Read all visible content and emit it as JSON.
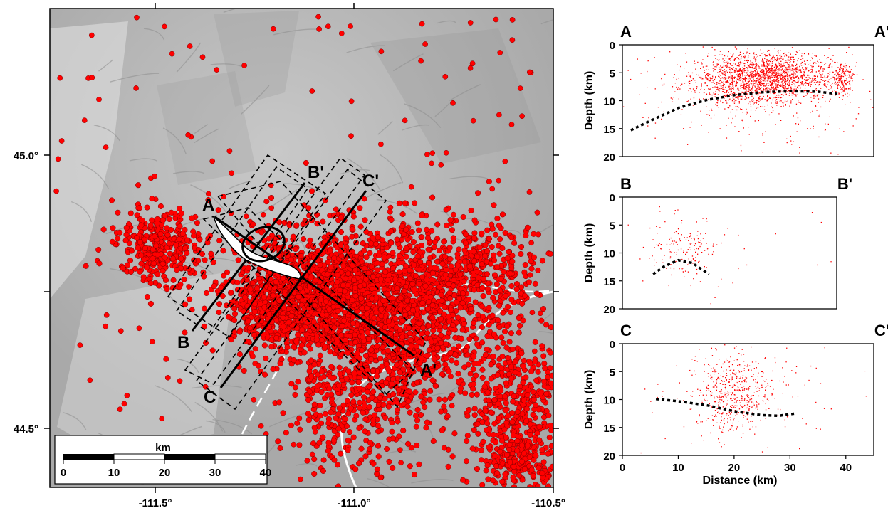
{
  "map": {
    "lon_ticks": [
      "-111.5°",
      "-111.0°",
      "-110.5°"
    ],
    "lat_ticks": [
      "45.0°",
      "44.5°"
    ],
    "profile_labels": {
      "A": "A",
      "A_prime": "A'",
      "B": "B",
      "B_prime": "B'",
      "C": "C",
      "C_prime": "C'"
    },
    "scalebar": {
      "title": "km",
      "ticks": [
        "0",
        "10",
        "20",
        "30",
        "40"
      ]
    },
    "colors": {
      "event": "#ff0000",
      "event_edge": "#7a0000",
      "background": "#b9b9b9",
      "road": "#ffffff"
    }
  },
  "chart_data": [
    {
      "type": "scatter",
      "corner_labels": [
        "A",
        "A'"
      ],
      "xlabel": "",
      "ylabel": "Depth (km)",
      "xlim": [
        0,
        45
      ],
      "ylim": [
        20,
        0
      ],
      "y_ticks": [
        "0",
        "5",
        "10",
        "15",
        "20"
      ],
      "x_ticks": [],
      "dashed_curve": [
        [
          1.5,
          15.3
        ],
        [
          5,
          13.6
        ],
        [
          10,
          11.3
        ],
        [
          15,
          9.9
        ],
        [
          20,
          9.0
        ],
        [
          25,
          8.5
        ],
        [
          30,
          8.3
        ],
        [
          35,
          8.4
        ],
        [
          38.5,
          8.8
        ]
      ],
      "clusters": [
        {
          "cx": 27,
          "cy": 5.5,
          "sx": 5.5,
          "sy": 2.0,
          "n": 1400
        },
        {
          "cx": 21,
          "cy": 7.0,
          "sx": 5.0,
          "sy": 2.4,
          "n": 600
        },
        {
          "cx": 39.5,
          "cy": 6.3,
          "sx": 0.9,
          "sy": 1.4,
          "n": 180
        },
        {
          "cx": 24,
          "cy": 8.0,
          "sx": 11,
          "sy": 5.5,
          "n": 300
        }
      ]
    },
    {
      "type": "scatter",
      "corner_labels": [
        "B",
        "B'"
      ],
      "xlabel": "",
      "ylabel": "Depth (km)",
      "xlim": [
        0,
        45
      ],
      "ylim": [
        20,
        0
      ],
      "y_ticks": [
        "0",
        "5",
        "10",
        "15",
        "20"
      ],
      "x_ticks": [],
      "dashed_curve": [
        [
          5.5,
          13.8
        ],
        [
          7.5,
          12.4
        ],
        [
          10,
          11.3
        ],
        [
          12.5,
          11.8
        ],
        [
          15.5,
          13.8
        ]
      ],
      "clusters": [
        {
          "cx": 11,
          "cy": 9.5,
          "sx": 3.0,
          "sy": 3.0,
          "n": 150
        },
        {
          "cx": 20,
          "cy": 10.0,
          "sx": 12,
          "sy": 6.0,
          "n": 30
        }
      ]
    },
    {
      "type": "scatter",
      "corner_labels": [
        "C",
        "C'"
      ],
      "xlabel": "Distance (km)",
      "ylabel": "Depth (km)",
      "xlim": [
        0,
        45
      ],
      "ylim": [
        20,
        0
      ],
      "y_ticks": [
        "0",
        "5",
        "10",
        "15",
        "20"
      ],
      "x_ticks": [
        "0",
        "10",
        "20",
        "30",
        "40"
      ],
      "dashed_curve": [
        [
          6,
          9.9
        ],
        [
          10,
          10.3
        ],
        [
          15,
          11.0
        ],
        [
          20,
          12.1
        ],
        [
          25,
          12.8
        ],
        [
          28,
          12.9
        ],
        [
          31,
          12.5
        ]
      ],
      "clusters": [
        {
          "cx": 19.5,
          "cy": 9.0,
          "sx": 3.5,
          "sy": 3.8,
          "n": 500
        },
        {
          "cx": 22,
          "cy": 9.0,
          "sx": 9.0,
          "sy": 5.0,
          "n": 80
        }
      ]
    }
  ]
}
